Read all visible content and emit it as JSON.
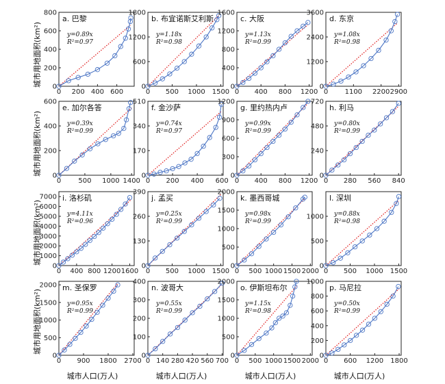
{
  "figure": {
    "x_axis_label": "城市人口(万人)",
    "y_axis_label": "城市用地面积(km²)",
    "colors": {
      "observed": "#4a74c4",
      "fit": "#e02020"
    }
  },
  "chart_data": [
    {
      "id": "a",
      "title": "a. 巴黎",
      "type": "scatter",
      "xlim": [
        0,
        780
      ],
      "ylim": [
        0,
        800
      ],
      "xticks": [
        0,
        200,
        400,
        600
      ],
      "yticks": [
        0,
        200,
        400,
        600,
        800
      ],
      "equation": "y=0.89x",
      "r2": "R²=0.97",
      "fit_slope": 0.89,
      "fit_x_end": 740,
      "points": [
        [
          0,
          0
        ],
        [
          100,
          60
        ],
        [
          200,
          95
        ],
        [
          300,
          130
        ],
        [
          400,
          180
        ],
        [
          500,
          250
        ],
        [
          580,
          330
        ],
        [
          640,
          430
        ],
        [
          690,
          520
        ],
        [
          720,
          620
        ],
        [
          740,
          700
        ],
        [
          745,
          740
        ]
      ]
    },
    {
      "id": "b",
      "title": "b. 布宜诺斯艾利斯",
      "type": "scatter",
      "xlim": [
        0,
        1550
      ],
      "ylim": [
        0,
        1800
      ],
      "xticks": [
        0,
        500,
        1000,
        1500
      ],
      "yticks": [
        0,
        600,
        1200,
        1800
      ],
      "equation": "y=1.18x",
      "r2": "R²=0.98",
      "fit_slope": 1.18,
      "fit_x_end": 1460,
      "points": [
        [
          0,
          0
        ],
        [
          150,
          80
        ],
        [
          300,
          180
        ],
        [
          450,
          300
        ],
        [
          600,
          440
        ],
        [
          750,
          600
        ],
        [
          900,
          780
        ],
        [
          1050,
          980
        ],
        [
          1200,
          1200
        ],
        [
          1320,
          1420
        ],
        [
          1420,
          1620
        ],
        [
          1460,
          1720
        ]
      ]
    },
    {
      "id": "c",
      "title": "c. 大阪",
      "type": "scatter",
      "xlim": [
        0,
        1250
      ],
      "ylim": [
        0,
        1600
      ],
      "xticks": [
        0,
        400,
        800,
        1200
      ],
      "yticks": [
        0,
        400,
        800,
        1200,
        1600
      ],
      "equation": "y=1.13x",
      "r2": "R²=0.99",
      "fit_slope": 1.13,
      "fit_x_end": 1180,
      "points": [
        [
          0,
          0
        ],
        [
          100,
          80
        ],
        [
          200,
          170
        ],
        [
          300,
          280
        ],
        [
          400,
          400
        ],
        [
          500,
          530
        ],
        [
          600,
          660
        ],
        [
          700,
          800
        ],
        [
          800,
          940
        ],
        [
          900,
          1080
        ],
        [
          1000,
          1200
        ],
        [
          1100,
          1300
        ],
        [
          1180,
          1380
        ]
      ]
    },
    {
      "id": "d",
      "title": "d. 东京",
      "type": "scatter",
      "xlim": [
        0,
        3000
      ],
      "ylim": [
        0,
        3600
      ],
      "xticks": [
        0,
        1100,
        2200,
        2900
      ],
      "yticks": [
        0,
        1200,
        2400,
        3600
      ],
      "equation": "y=1.08x",
      "r2": "R²=0.98",
      "fit_slope": 1.08,
      "fit_x_end": 2850,
      "points": [
        [
          0,
          0
        ],
        [
          300,
          100
        ],
        [
          600,
          250
        ],
        [
          900,
          450
        ],
        [
          1200,
          700
        ],
        [
          1500,
          1000
        ],
        [
          1800,
          1350
        ],
        [
          2100,
          1750
        ],
        [
          2400,
          2250
        ],
        [
          2600,
          2700
        ],
        [
          2750,
          3150
        ],
        [
          2850,
          3500
        ]
      ]
    },
    {
      "id": "e",
      "title": "e. 加尔各答",
      "type": "scatter",
      "xlim": [
        0,
        1450
      ],
      "ylim": [
        0,
        600
      ],
      "xticks": [
        0,
        500,
        1000,
        1400
      ],
      "yticks": [
        0,
        200,
        400,
        600
      ],
      "equation": "y=0.39x",
      "r2": "R²=0.99",
      "fit_slope": 0.39,
      "fit_x_end": 1400,
      "points": [
        [
          0,
          0
        ],
        [
          150,
          55
        ],
        [
          300,
          115
        ],
        [
          450,
          165
        ],
        [
          600,
          215
        ],
        [
          750,
          255
        ],
        [
          900,
          290
        ],
        [
          1050,
          320
        ],
        [
          1150,
          340
        ],
        [
          1250,
          380
        ],
        [
          1300,
          450
        ],
        [
          1350,
          540
        ],
        [
          1380,
          590
        ]
      ]
    },
    {
      "id": "f",
      "title": "f. 金沙萨",
      "type": "scatter",
      "xlim": [
        0,
        610
      ],
      "ylim": [
        0,
        510
      ],
      "xticks": [
        0,
        200,
        400,
        600
      ],
      "yticks": [
        0,
        170,
        340,
        510
      ],
      "equation": "y=0.74x",
      "r2": "R²=0.97",
      "fit_slope": 0.74,
      "fit_x_end": 600,
      "points": [
        [
          0,
          0
        ],
        [
          50,
          8
        ],
        [
          100,
          20
        ],
        [
          150,
          30
        ],
        [
          200,
          45
        ],
        [
          250,
          60
        ],
        [
          300,
          85
        ],
        [
          350,
          110
        ],
        [
          400,
          150
        ],
        [
          450,
          200
        ],
        [
          500,
          260
        ],
        [
          550,
          330
        ],
        [
          580,
          400
        ],
        [
          595,
          490
        ]
      ]
    },
    {
      "id": "g",
      "title": "g. 里约热内卢",
      "type": "scatter",
      "xlim": [
        0,
        1250
      ],
      "ylim": [
        0,
        1200
      ],
      "xticks": [
        0,
        400,
        800,
        1200
      ],
      "yticks": [
        0,
        300,
        600,
        900,
        1200
      ],
      "equation": "y=0.99x",
      "r2": "R²=0.99",
      "fit_slope": 0.99,
      "fit_x_end": 1180,
      "points": [
        [
          0,
          0
        ],
        [
          100,
          70
        ],
        [
          200,
          150
        ],
        [
          300,
          250
        ],
        [
          400,
          350
        ],
        [
          500,
          450
        ],
        [
          600,
          550
        ],
        [
          700,
          650
        ],
        [
          800,
          750
        ],
        [
          900,
          860
        ],
        [
          1000,
          980
        ],
        [
          1100,
          1100
        ],
        [
          1180,
          1200
        ]
      ]
    },
    {
      "id": "h",
      "title": "h. 利马",
      "type": "scatter",
      "xlim": [
        0,
        870
      ],
      "ylim": [
        0,
        720
      ],
      "xticks": [
        0,
        280,
        560,
        840
      ],
      "yticks": [
        0,
        240,
        480,
        720
      ],
      "equation": "y=0.80x",
      "r2": "R²=0.99",
      "fit_slope": 0.8,
      "fit_x_end": 840,
      "points": [
        [
          0,
          0
        ],
        [
          70,
          50
        ],
        [
          140,
          100
        ],
        [
          210,
          150
        ],
        [
          280,
          210
        ],
        [
          350,
          270
        ],
        [
          420,
          330
        ],
        [
          490,
          390
        ],
        [
          560,
          440
        ],
        [
          630,
          500
        ],
        [
          700,
          560
        ],
        [
          770,
          620
        ],
        [
          840,
          700
        ]
      ]
    },
    {
      "id": "i",
      "title": "i. 洛杉矶",
      "type": "scatter",
      "xlim": [
        0,
        1700
      ],
      "ylim": [
        0,
        7500
      ],
      "xticks": [
        0,
        400,
        800,
        1200,
        1600
      ],
      "yticks": [
        0,
        1000,
        2000,
        3000,
        4000,
        5000,
        6000,
        7000
      ],
      "equation": "y=4.11x",
      "r2": "R²=0.96",
      "fit_slope": 4.11,
      "fit_x_end": 1640,
      "points": [
        [
          0,
          0
        ],
        [
          100,
          350
        ],
        [
          200,
          700
        ],
        [
          300,
          1050
        ],
        [
          400,
          1400
        ],
        [
          500,
          1750
        ],
        [
          600,
          2150
        ],
        [
          700,
          2550
        ],
        [
          800,
          2950
        ],
        [
          900,
          3350
        ],
        [
          1000,
          3800
        ],
        [
          1100,
          4250
        ],
        [
          1200,
          4700
        ],
        [
          1300,
          5200
        ],
        [
          1400,
          5700
        ],
        [
          1500,
          6250
        ],
        [
          1600,
          6900
        ]
      ]
    },
    {
      "id": "j",
      "title": "j. 孟买",
      "type": "scatter",
      "xlim": [
        0,
        1550
      ],
      "ylim": [
        0,
        390
      ],
      "xticks": [
        0,
        500,
        1000,
        1500
      ],
      "yticks": [
        0,
        130,
        260,
        390
      ],
      "equation": "y=0.25x",
      "r2": "R²=0.99",
      "fit_slope": 0.25,
      "fit_x_end": 1500,
      "points": [
        [
          0,
          0
        ],
        [
          150,
          40
        ],
        [
          300,
          75
        ],
        [
          450,
          110
        ],
        [
          600,
          145
        ],
        [
          750,
          180
        ],
        [
          900,
          215
        ],
        [
          1050,
          250
        ],
        [
          1200,
          285
        ],
        [
          1350,
          320
        ],
        [
          1480,
          355
        ]
      ]
    },
    {
      "id": "k",
      "title": "k. 墨西哥城",
      "type": "scatter",
      "xlim": [
        0,
        2050
      ],
      "ylim": [
        0,
        2000
      ],
      "xticks": [
        0,
        500,
        1000,
        1500,
        2000
      ],
      "yticks": [
        0,
        500,
        1000,
        1500,
        2000
      ],
      "equation": "y=0.98x",
      "r2": "R²=0.99",
      "fit_slope": 0.98,
      "fit_x_end": 1850,
      "points": [
        [
          0,
          0
        ],
        [
          200,
          150
        ],
        [
          400,
          320
        ],
        [
          600,
          520
        ],
        [
          800,
          720
        ],
        [
          1000,
          900
        ],
        [
          1200,
          1100
        ],
        [
          1400,
          1320
        ],
        [
          1600,
          1560
        ],
        [
          1800,
          1800
        ],
        [
          1850,
          1850
        ]
      ]
    },
    {
      "id": "l",
      "title": "l. 深圳",
      "type": "scatter",
      "xlim": [
        0,
        1550
      ],
      "ylim": [
        0,
        1500
      ],
      "xticks": [
        0,
        500,
        1000,
        1500
      ],
      "yticks": [
        0,
        500,
        1000
      ],
      "equation": "y=0.88x",
      "r2": "R²=0.98",
      "fit_slope": 0.88,
      "fit_x_end": 1500,
      "points": [
        [
          0,
          0
        ],
        [
          150,
          60
        ],
        [
          300,
          150
        ],
        [
          450,
          260
        ],
        [
          600,
          380
        ],
        [
          750,
          500
        ],
        [
          900,
          620
        ],
        [
          1050,
          750
        ],
        [
          1200,
          900
        ],
        [
          1350,
          1080
        ],
        [
          1450,
          1260
        ],
        [
          1500,
          1400
        ]
      ]
    },
    {
      "id": "m",
      "title": "m. 圣保罗",
      "type": "scatter",
      "xlim": [
        0,
        2750
      ],
      "ylim": [
        0,
        2100
      ],
      "xticks": [
        0,
        900,
        1800,
        2700
      ],
      "yticks": [
        0,
        500,
        1000,
        1500,
        2000
      ],
      "equation": "y=0.95x",
      "r2": "R²=0.99",
      "fit_slope": 0.95,
      "fit_x_end": 2150,
      "points": [
        [
          0,
          0
        ],
        [
          200,
          150
        ],
        [
          400,
          310
        ],
        [
          600,
          480
        ],
        [
          800,
          650
        ],
        [
          1000,
          830
        ],
        [
          1200,
          1020
        ],
        [
          1400,
          1220
        ],
        [
          1600,
          1420
        ],
        [
          1800,
          1620
        ],
        [
          2000,
          1820
        ],
        [
          2150,
          2000
        ]
      ]
    },
    {
      "id": "n",
      "title": "n. 波哥大",
      "type": "scatter",
      "xlim": [
        0,
        710
      ],
      "ylim": [
        0,
        400
      ],
      "xticks": [
        0,
        140,
        280,
        420,
        560,
        700
      ],
      "yticks": [
        0,
        100,
        200,
        300,
        400
      ],
      "equation": "y=0.55x",
      "r2": "R²=0.99",
      "fit_slope": 0.55,
      "fit_x_end": 700,
      "points": [
        [
          0,
          0
        ],
        [
          70,
          35
        ],
        [
          140,
          75
        ],
        [
          210,
          115
        ],
        [
          280,
          150
        ],
        [
          350,
          190
        ],
        [
          420,
          230
        ],
        [
          490,
          265
        ],
        [
          560,
          305
        ],
        [
          630,
          345
        ],
        [
          700,
          390
        ]
      ]
    },
    {
      "id": "o",
      "title": "o. 伊斯坦布尔",
      "type": "scatter",
      "xlim": [
        0,
        2050
      ],
      "ylim": [
        0,
        2000
      ],
      "xticks": [
        0,
        500,
        1000,
        1500,
        2000
      ],
      "yticks": [
        0,
        500,
        1000,
        1500,
        2000
      ],
      "equation": "y=1.15x",
      "r2": "R²=0.98",
      "fit_slope": 1.15,
      "fit_x_end": 1650,
      "points": [
        [
          0,
          0
        ],
        [
          200,
          130
        ],
        [
          400,
          290
        ],
        [
          600,
          450
        ],
        [
          800,
          600
        ],
        [
          950,
          740
        ],
        [
          1050,
          880
        ],
        [
          1150,
          1000
        ],
        [
          1250,
          1060
        ],
        [
          1350,
          1150
        ],
        [
          1450,
          1350
        ],
        [
          1520,
          1600
        ],
        [
          1580,
          1850
        ],
        [
          1620,
          2000
        ]
      ]
    },
    {
      "id": "p",
      "title": "p. 马尼拉",
      "type": "scatter",
      "xlim": [
        0,
        1850
      ],
      "ylim": [
        0,
        1000
      ],
      "xticks": [
        0,
        600,
        1200,
        1800
      ],
      "yticks": [
        0,
        200,
        400,
        600,
        800,
        1000
      ],
      "equation": "y=0.50x",
      "r2": "R²=0.99",
      "fit_slope": 0.5,
      "fit_x_end": 1800,
      "points": [
        [
          0,
          0
        ],
        [
          150,
          30
        ],
        [
          300,
          80
        ],
        [
          450,
          140
        ],
        [
          600,
          200
        ],
        [
          750,
          270
        ],
        [
          900,
          340
        ],
        [
          1050,
          420
        ],
        [
          1200,
          500
        ],
        [
          1350,
          590
        ],
        [
          1500,
          690
        ],
        [
          1650,
          800
        ],
        [
          1780,
          930
        ]
      ]
    }
  ]
}
